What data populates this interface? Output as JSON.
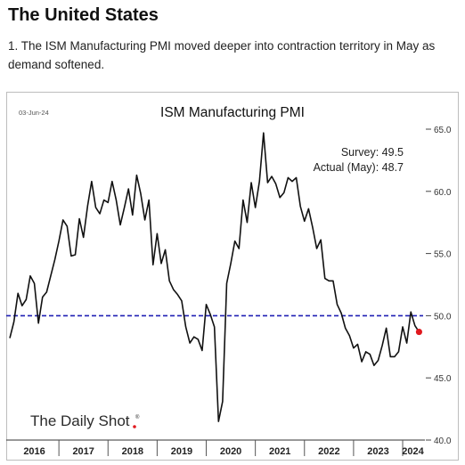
{
  "page": {
    "heading": "The United States",
    "caption": "1. The ISM Manufacturing PMI moved deeper into contraction territory in May as demand softened."
  },
  "chart_data": {
    "type": "line",
    "title": "ISM Manufacturing PMI",
    "date_stamp": "03-Jun-24",
    "watermark": "The Daily Shot",
    "annotations": [
      "Survey:  49.5",
      "Actual (May):  48.7"
    ],
    "x_tick_labels": [
      "2016",
      "2017",
      "2018",
      "2019",
      "2020",
      "2021",
      "2022",
      "2023",
      "2024"
    ],
    "y_tick_labels": [
      "65.0",
      "60.0",
      "55.0",
      "50.0",
      "45.0",
      "40.0"
    ],
    "ylim": [
      40,
      65
    ],
    "xlim": [
      "2016-01",
      "2024-06"
    ],
    "y_axis_side": "right",
    "grid": false,
    "reference_line": {
      "y": 50,
      "style": "dashed",
      "color": "#1f1fb4"
    },
    "line_color": "#111111",
    "highlight_point": {
      "x": "2024-05",
      "y": 48.7,
      "color": "#e0191e"
    },
    "series": [
      {
        "start": "2016-01",
        "frequency": "monthly",
        "values": [
          48.2,
          49.5,
          51.8,
          50.8,
          51.3,
          53.2,
          52.6,
          49.4,
          51.5,
          51.9,
          53.2,
          54.5,
          56.0,
          57.7,
          57.2,
          54.8,
          54.9,
          57.8,
          56.3,
          58.8,
          60.8,
          58.7,
          58.2,
          59.3,
          59.1,
          60.8,
          59.3,
          57.3,
          58.7,
          60.2,
          58.1,
          61.3,
          59.8,
          57.7,
          59.3,
          54.1,
          56.6,
          54.2,
          55.3,
          52.8,
          52.1,
          51.7,
          51.2,
          49.1,
          47.8,
          48.3,
          48.1,
          47.2,
          50.9,
          50.1,
          49.1,
          41.5,
          43.1,
          52.6,
          54.2,
          56.0,
          55.4,
          59.3,
          57.5,
          60.7,
          58.7,
          60.8,
          64.7,
          60.7,
          61.2,
          60.6,
          59.5,
          59.9,
          61.1,
          60.8,
          61.1,
          58.8,
          57.6,
          58.6,
          57.1,
          55.4,
          56.1,
          53.0,
          52.8,
          52.8,
          50.9,
          50.2,
          49.0,
          48.4,
          47.4,
          47.7,
          46.3,
          47.1,
          46.9,
          46.0,
          46.4,
          47.6,
          49.0,
          46.7,
          46.7,
          47.1,
          49.1,
          47.8,
          50.3,
          49.2,
          48.7
        ]
      }
    ]
  }
}
